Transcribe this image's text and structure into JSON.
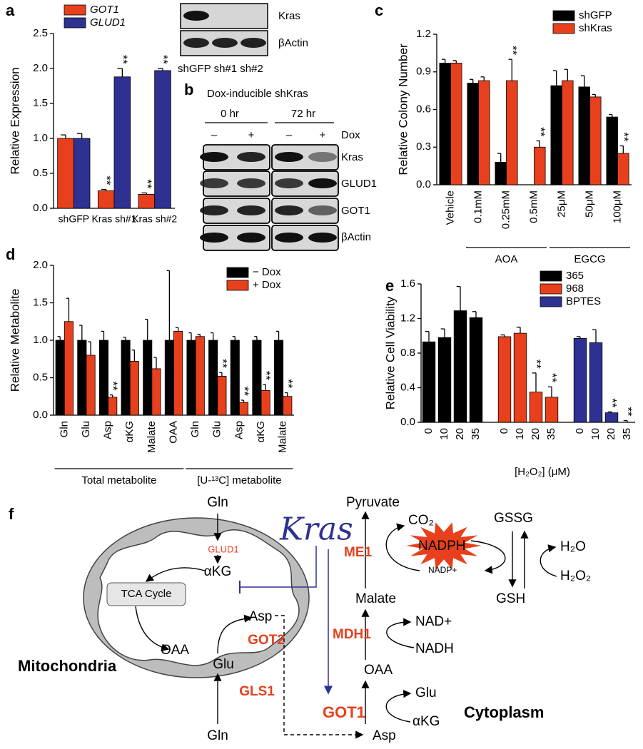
{
  "chart_data": [
    {
      "type": "bar",
      "panel": "a",
      "ylabel": "Relative Expression",
      "ylim": [
        0,
        2.5
      ],
      "yticks": [
        {
          "value": 0,
          "label": "0.0"
        },
        0.5,
        {
          "value": 1,
          "label": "1.0"
        },
        1.5,
        {
          "value": 2,
          "label": "2.0"
        },
        2.5
      ],
      "legend": "upper left",
      "groups": [
        {
          "categories": [
            "shGFP",
            "Kras sh#1",
            "Kras sh#2"
          ]
        }
      ],
      "series": [
        {
          "name": "GOT1",
          "color": "#e8401c",
          "values": [
            1.0,
            0.25,
            0.2
          ],
          "errors": [
            0.05,
            0.02,
            0.02
          ],
          "annotations": [
            null,
            "**",
            "**"
          ]
        },
        {
          "name": "GLUD1",
          "color": "#2e3192",
          "values": [
            1.0,
            1.88,
            1.97
          ],
          "errors": [
            0.07,
            0.12,
            0.03
          ],
          "annotations": [
            null,
            "**",
            "**"
          ]
        }
      ]
    },
    {
      "type": "bar",
      "panel": "c",
      "ylabel": "Relative Colony Number",
      "ylim": [
        0,
        1.2
      ],
      "yticks": [
        {
          "value": 0,
          "label": "0.0"
        },
        0.3,
        0.6,
        0.9,
        1.2
      ],
      "legend": "upper right",
      "groups": [
        {
          "categories": [
            "Vehicle"
          ]
        },
        {
          "name": "AOA",
          "categories": [
            "0.1mM",
            "0.25mM",
            "0.5mM"
          ]
        },
        {
          "name": "EGCG",
          "categories": [
            "25μM",
            "50μM",
            "100μM"
          ]
        }
      ],
      "series": [
        {
          "name": "shGFP",
          "color": "#000000",
          "values": [
            0.97,
            0.81,
            0.18,
            0,
            0.79,
            0.78,
            0.54
          ],
          "errors": [
            0.03,
            0.03,
            0.07,
            0,
            0.12,
            0.09,
            0.02
          ],
          "annotations": [
            null,
            null,
            null,
            null,
            null,
            null,
            null
          ]
        },
        {
          "name": "shKras",
          "color": "#e8401c",
          "values": [
            0.97,
            0.83,
            0.83,
            0.3,
            0.83,
            0.7,
            0.25
          ],
          "errors": [
            0.02,
            0.03,
            0.17,
            0.05,
            0.09,
            0.02,
            0.06
          ],
          "annotations": [
            null,
            null,
            "**",
            "**",
            null,
            null,
            "**"
          ]
        }
      ]
    },
    {
      "type": "bar",
      "panel": "d",
      "ylabel": "Relative Metabolite",
      "ylim": [
        0,
        2.0
      ],
      "yticks": [
        {
          "value": 0,
          "label": "0.0"
        },
        0.5,
        {
          "value": 1,
          "label": "1.0"
        },
        1.5,
        {
          "value": 2,
          "label": "2.0"
        }
      ],
      "legend": "upper right",
      "groups": [
        {
          "name": "Total metabolite",
          "categories": [
            "Gln",
            "Glu",
            "Asp",
            "αKG",
            "Malate",
            "OAA"
          ]
        },
        {
          "name": "[U-¹³C] metabolite",
          "categories": [
            "Gln",
            "Glu",
            "Asp",
            "αKG",
            "Malate"
          ]
        }
      ],
      "series": [
        {
          "name": "− Dox",
          "color": "#000000",
          "values": [
            1,
            1,
            1,
            1,
            1,
            1,
            1,
            1,
            1,
            1,
            1
          ],
          "errors": [
            0.05,
            0.2,
            0.12,
            0.04,
            0.28,
            0.93,
            0.1,
            0.1,
            0.05,
            0.05,
            0.12
          ],
          "annotations": [
            null,
            null,
            null,
            null,
            null,
            null,
            null,
            null,
            null,
            null,
            null
          ]
        },
        {
          "name": "+ Dox",
          "color": "#e8401c",
          "values": [
            1.25,
            0.8,
            0.24,
            0.72,
            0.62,
            1.12,
            1.05,
            0.52,
            0.17,
            0.33,
            0.25
          ],
          "errors": [
            0.31,
            0.18,
            0.03,
            0.15,
            0.15,
            0.05,
            0.03,
            0.05,
            0.03,
            0.08,
            0.05
          ],
          "annotations": [
            null,
            null,
            "**",
            null,
            null,
            null,
            null,
            "**",
            "**",
            "**",
            "**"
          ]
        }
      ]
    },
    {
      "type": "bar",
      "panel": "e",
      "ylabel": "Relative Cell Viability",
      "xlabel": "[H₂O₂] (μM)",
      "ylim": [
        0,
        1.6
      ],
      "yticks": [
        {
          "value": 0,
          "label": "0.0"
        },
        0.4,
        0.8,
        1.2,
        1.6
      ],
      "legend": "upper right",
      "groups": [
        {
          "categories": [
            "0",
            "10",
            "20",
            "35"
          ]
        },
        {
          "categories": [
            "0",
            "10",
            "20",
            "35"
          ]
        },
        {
          "categories": [
            "0",
            "10",
            "20",
            "35"
          ]
        }
      ],
      "series": [
        {
          "name": "365",
          "color": "#000000",
          "values": [
            0.93,
            0.98,
            1.29,
            1.21,
            null,
            null,
            null,
            null,
            null,
            null,
            null,
            null
          ],
          "errors": [
            0.12,
            0.1,
            0.28,
            0.07,
            null,
            null,
            null,
            null,
            null,
            null,
            null,
            null
          ],
          "annotations": [
            null,
            null,
            null,
            null,
            null,
            null,
            null,
            null,
            null,
            null,
            null,
            null
          ]
        },
        {
          "name": "968",
          "color": "#e8401c",
          "values": [
            null,
            null,
            null,
            null,
            0.99,
            1.03,
            0.35,
            0.29,
            null,
            null,
            null,
            null
          ],
          "errors": [
            null,
            null,
            null,
            null,
            0.02,
            0.07,
            0.22,
            0.12,
            null,
            null,
            null,
            null
          ],
          "annotations": [
            null,
            null,
            null,
            null,
            null,
            null,
            "**",
            "**",
            null,
            null,
            null,
            null
          ]
        },
        {
          "name": "BPTES",
          "color": "#2e3192",
          "values": [
            null,
            null,
            null,
            null,
            null,
            null,
            null,
            null,
            0.97,
            0.92,
            0.11,
            0.0
          ],
          "errors": [
            null,
            null,
            null,
            null,
            null,
            null,
            null,
            null,
            0.02,
            0.15,
            0.01,
            0.02
          ],
          "annotations": [
            null,
            null,
            null,
            null,
            null,
            null,
            null,
            null,
            null,
            null,
            "**",
            "**"
          ]
        }
      ]
    }
  ],
  "blots": {
    "inset": {
      "rows": [
        "Kras",
        "βActin"
      ],
      "lanes": "shGFP sh#1 sh#2"
    },
    "b": {
      "panel": "b",
      "title": "Dox-inducible shKras",
      "timepoints": [
        "0 hr",
        "72 hr"
      ],
      "treatment": [
        "–",
        "+",
        "–",
        "+"
      ],
      "treatment_label": "Dox",
      "rows": [
        "Kras",
        "GLUD1",
        "GOT1",
        "βActin"
      ]
    }
  },
  "diagram": {
    "panel": "f",
    "labels": [
      "Gln",
      "GLUD1",
      "αKG",
      "TCA Cycle",
      "Asp",
      "GOT2",
      "OAA",
      "Glu",
      "GLS1",
      "Gln",
      "Mitochondria",
      "Kras",
      "Pyruvate",
      "CO₂",
      "NADPH",
      "NADP+",
      "ME1",
      "Malate",
      "GSSG",
      "H₂O",
      "H₂O₂",
      "GSH",
      "MDH1",
      "NAD+",
      "NADH",
      "OAA",
      "Glu",
      "αKG",
      "GOT1",
      "Cytoplasm",
      "Asp"
    ]
  }
}
